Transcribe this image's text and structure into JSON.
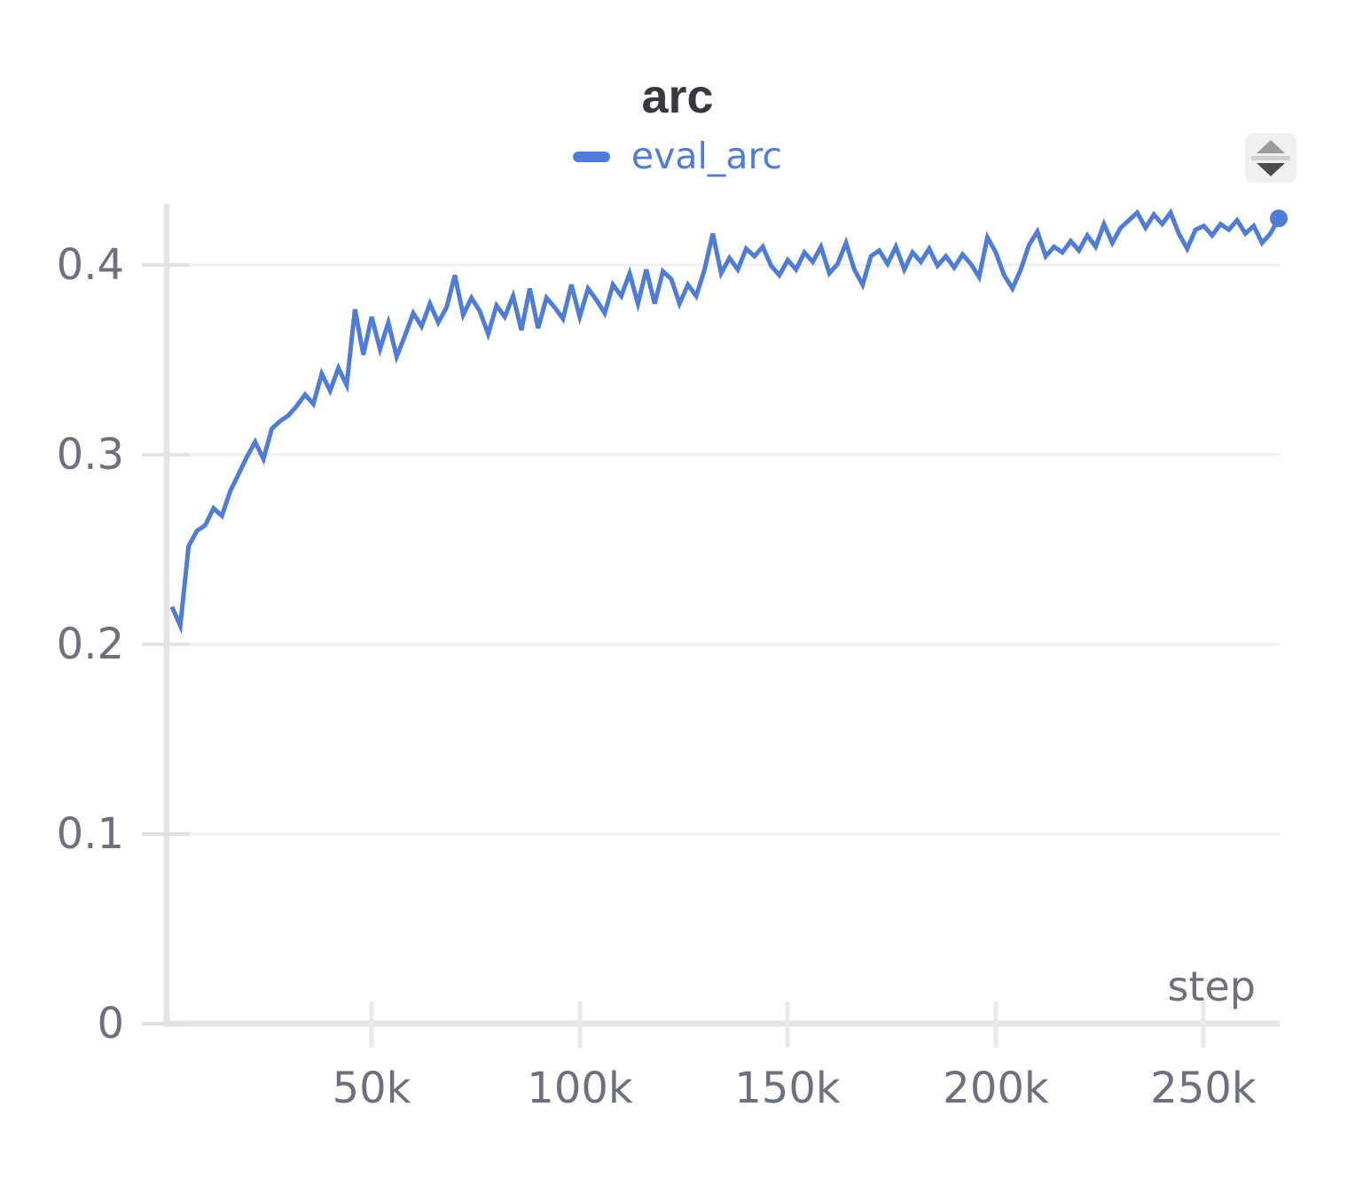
{
  "header": {
    "title": "arc"
  },
  "legend": {
    "label": "eval_arc",
    "color": "#4e7cd6"
  },
  "icons": {
    "panel_control": "up-down-triangles-sort-icon"
  },
  "chart_data": {
    "type": "line",
    "title": "arc",
    "xlabel": "step",
    "ylabel": "",
    "xlim": [
      0,
      272000
    ],
    "ylim": [
      0,
      0.43
    ],
    "grid": true,
    "legend_position": "top-center",
    "x_tick_values": [
      50000,
      100000,
      150000,
      200000,
      250000
    ],
    "x_tick_labels": [
      "50k",
      "100k",
      "150k",
      "200k",
      "250k"
    ],
    "y_tick_values": [
      0,
      0.1,
      0.2,
      0.3,
      0.4
    ],
    "y_tick_labels": [
      "0",
      "0.1",
      "0.2",
      "0.3",
      "0.4"
    ],
    "series": [
      {
        "name": "eval_arc",
        "color": "#4e7cd6",
        "end_marker": true,
        "points": [
          [
            2000,
            0.22
          ],
          [
            4000,
            0.21
          ],
          [
            6000,
            0.252
          ],
          [
            8000,
            0.26
          ],
          [
            10000,
            0.263
          ],
          [
            12000,
            0.272
          ],
          [
            14000,
            0.268
          ],
          [
            16000,
            0.281
          ],
          [
            18000,
            0.29
          ],
          [
            20000,
            0.299
          ],
          [
            22000,
            0.307
          ],
          [
            24000,
            0.298
          ],
          [
            26000,
            0.314
          ],
          [
            28000,
            0.318
          ],
          [
            30000,
            0.321
          ],
          [
            32000,
            0.326
          ],
          [
            34000,
            0.332
          ],
          [
            36000,
            0.327
          ],
          [
            38000,
            0.343
          ],
          [
            40000,
            0.334
          ],
          [
            42000,
            0.346
          ],
          [
            44000,
            0.337
          ],
          [
            46000,
            0.377
          ],
          [
            48000,
            0.353
          ],
          [
            50000,
            0.373
          ],
          [
            52000,
            0.356
          ],
          [
            54000,
            0.37
          ],
          [
            56000,
            0.352
          ],
          [
            58000,
            0.363
          ],
          [
            60000,
            0.375
          ],
          [
            62000,
            0.368
          ],
          [
            64000,
            0.38
          ],
          [
            66000,
            0.37
          ],
          [
            68000,
            0.378
          ],
          [
            70000,
            0.395
          ],
          [
            72000,
            0.374
          ],
          [
            74000,
            0.383
          ],
          [
            76000,
            0.376
          ],
          [
            78000,
            0.364
          ],
          [
            80000,
            0.379
          ],
          [
            82000,
            0.373
          ],
          [
            84000,
            0.384
          ],
          [
            86000,
            0.366
          ],
          [
            88000,
            0.388
          ],
          [
            90000,
            0.367
          ],
          [
            92000,
            0.383
          ],
          [
            94000,
            0.378
          ],
          [
            96000,
            0.372
          ],
          [
            98000,
            0.39
          ],
          [
            100000,
            0.373
          ],
          [
            102000,
            0.388
          ],
          [
            104000,
            0.382
          ],
          [
            106000,
            0.375
          ],
          [
            108000,
            0.39
          ],
          [
            110000,
            0.384
          ],
          [
            112000,
            0.396
          ],
          [
            114000,
            0.38
          ],
          [
            116000,
            0.398
          ],
          [
            118000,
            0.38
          ],
          [
            120000,
            0.397
          ],
          [
            122000,
            0.393
          ],
          [
            124000,
            0.38
          ],
          [
            126000,
            0.39
          ],
          [
            128000,
            0.384
          ],
          [
            130000,
            0.398
          ],
          [
            132000,
            0.417
          ],
          [
            134000,
            0.396
          ],
          [
            136000,
            0.404
          ],
          [
            138000,
            0.398
          ],
          [
            140000,
            0.409
          ],
          [
            142000,
            0.405
          ],
          [
            144000,
            0.41
          ],
          [
            146000,
            0.4
          ],
          [
            148000,
            0.395
          ],
          [
            150000,
            0.403
          ],
          [
            152000,
            0.398
          ],
          [
            154000,
            0.407
          ],
          [
            156000,
            0.402
          ],
          [
            158000,
            0.41
          ],
          [
            160000,
            0.396
          ],
          [
            162000,
            0.401
          ],
          [
            164000,
            0.412
          ],
          [
            166000,
            0.398
          ],
          [
            168000,
            0.39
          ],
          [
            170000,
            0.405
          ],
          [
            172000,
            0.408
          ],
          [
            174000,
            0.401
          ],
          [
            176000,
            0.41
          ],
          [
            178000,
            0.398
          ],
          [
            180000,
            0.407
          ],
          [
            182000,
            0.402
          ],
          [
            184000,
            0.409
          ],
          [
            186000,
            0.4
          ],
          [
            188000,
            0.405
          ],
          [
            190000,
            0.399
          ],
          [
            192000,
            0.406
          ],
          [
            194000,
            0.401
          ],
          [
            196000,
            0.394
          ],
          [
            198000,
            0.415
          ],
          [
            200000,
            0.407
          ],
          [
            202000,
            0.395
          ],
          [
            204000,
            0.388
          ],
          [
            206000,
            0.398
          ],
          [
            208000,
            0.411
          ],
          [
            210000,
            0.418
          ],
          [
            212000,
            0.405
          ],
          [
            214000,
            0.41
          ],
          [
            216000,
            0.407
          ],
          [
            218000,
            0.413
          ],
          [
            220000,
            0.408
          ],
          [
            222000,
            0.416
          ],
          [
            224000,
            0.41
          ],
          [
            226000,
            0.422
          ],
          [
            228000,
            0.412
          ],
          [
            230000,
            0.42
          ],
          [
            232000,
            0.424
          ],
          [
            234000,
            0.428
          ],
          [
            236000,
            0.42
          ],
          [
            238000,
            0.427
          ],
          [
            240000,
            0.422
          ],
          [
            242000,
            0.428
          ],
          [
            244000,
            0.417
          ],
          [
            246000,
            0.409
          ],
          [
            248000,
            0.419
          ],
          [
            250000,
            0.421
          ],
          [
            252000,
            0.416
          ],
          [
            254000,
            0.422
          ],
          [
            256000,
            0.419
          ],
          [
            258000,
            0.424
          ],
          [
            260000,
            0.417
          ],
          [
            262000,
            0.421
          ],
          [
            264000,
            0.412
          ],
          [
            266000,
            0.417
          ],
          [
            268000,
            0.425
          ]
        ]
      }
    ]
  }
}
